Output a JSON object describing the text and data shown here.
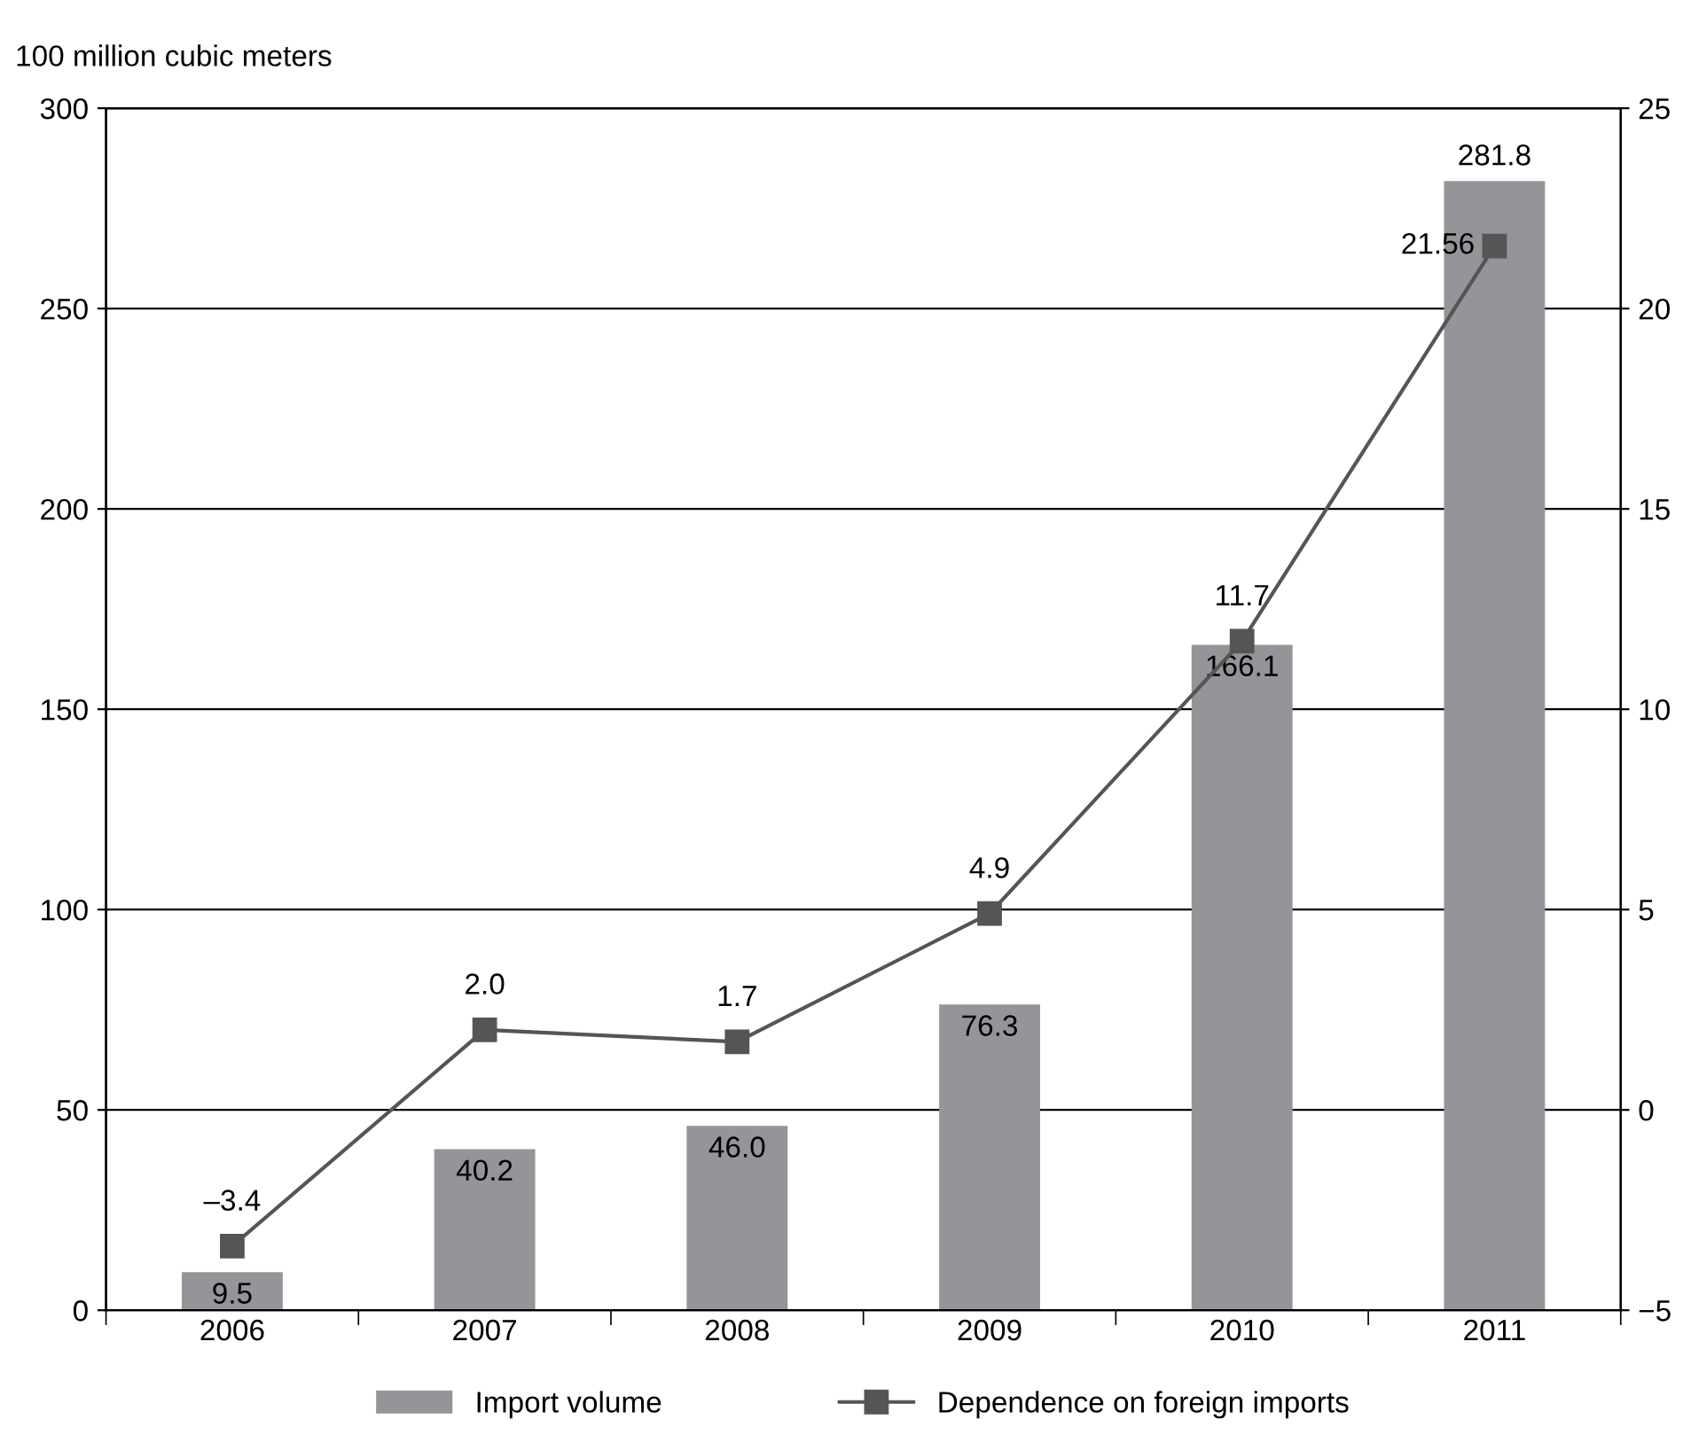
{
  "chart_data": {
    "type": "bar",
    "ylabel": "100 million cubic meters",
    "categories": [
      "2006",
      "2007",
      "2008",
      "2009",
      "2010",
      "2011"
    ],
    "series": [
      {
        "name": "Import volume",
        "color": "#939598",
        "values": [
          9.5,
          40.2,
          46.0,
          76.3,
          166.1,
          281.8
        ],
        "value_labels": [
          "9.5",
          "40.2",
          "46.0",
          "76.3",
          "166.1",
          "281.8"
        ]
      },
      {
        "name": "Dependence on foreign imports",
        "type": "line",
        "axis": "y2",
        "color": "#555555",
        "values": [
          -3.4,
          2.0,
          1.7,
          4.9,
          11.7,
          21.56
        ],
        "value_labels": [
          "–3.4",
          "2.0",
          "1.7",
          "4.9",
          "11.7",
          "21.56"
        ]
      }
    ],
    "ylim": [
      0,
      300
    ],
    "yticks": [
      0,
      50,
      100,
      150,
      200,
      250,
      300
    ],
    "y2lim": [
      -5,
      25
    ],
    "y2ticks": [
      {
        "value": -5,
        "label": "−5"
      },
      0,
      5,
      10,
      15,
      20,
      25
    ],
    "grid": "y",
    "legend": "bottom",
    "marker": "square",
    "line_style": "solid"
  }
}
